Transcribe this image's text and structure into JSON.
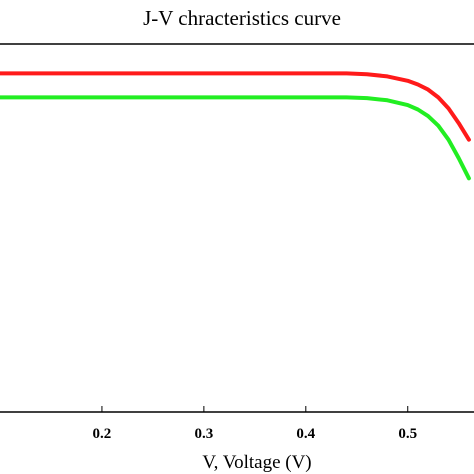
{
  "chart_data": {
    "type": "line",
    "title": "J-V chracteristics curve",
    "xlabel": "V, Voltage (V)",
    "ylabel": "",
    "xlim": [
      0.1,
      0.565
    ],
    "ylim": [
      0,
      1.0
    ],
    "xticks": [
      {
        "value": 0.2,
        "label": "0.2"
      },
      {
        "value": 0.3,
        "label": "0.3"
      },
      {
        "value": 0.4,
        "label": "0.4"
      },
      {
        "value": 0.5,
        "label": "0.5"
      }
    ],
    "grid": false,
    "colors": {
      "series_1": "#ff1a1a",
      "series_2": "#22ee22",
      "axes": "#000000"
    },
    "series": [
      {
        "x": [
          0.1,
          0.2,
          0.3,
          0.4,
          0.44,
          0.46,
          0.48,
          0.5,
          0.51,
          0.52,
          0.53,
          0.54,
          0.55,
          0.56
        ],
        "values": [
          0.92,
          0.92,
          0.92,
          0.92,
          0.92,
          0.918,
          0.912,
          0.9,
          0.89,
          0.876,
          0.855,
          0.825,
          0.785,
          0.74
        ]
      },
      {
        "x": [
          0.1,
          0.2,
          0.3,
          0.4,
          0.44,
          0.46,
          0.48,
          0.5,
          0.51,
          0.52,
          0.53,
          0.54,
          0.55,
          0.56
        ],
        "values": [
          0.855,
          0.855,
          0.855,
          0.855,
          0.855,
          0.853,
          0.847,
          0.834,
          0.822,
          0.804,
          0.778,
          0.74,
          0.69,
          0.635
        ]
      }
    ]
  }
}
